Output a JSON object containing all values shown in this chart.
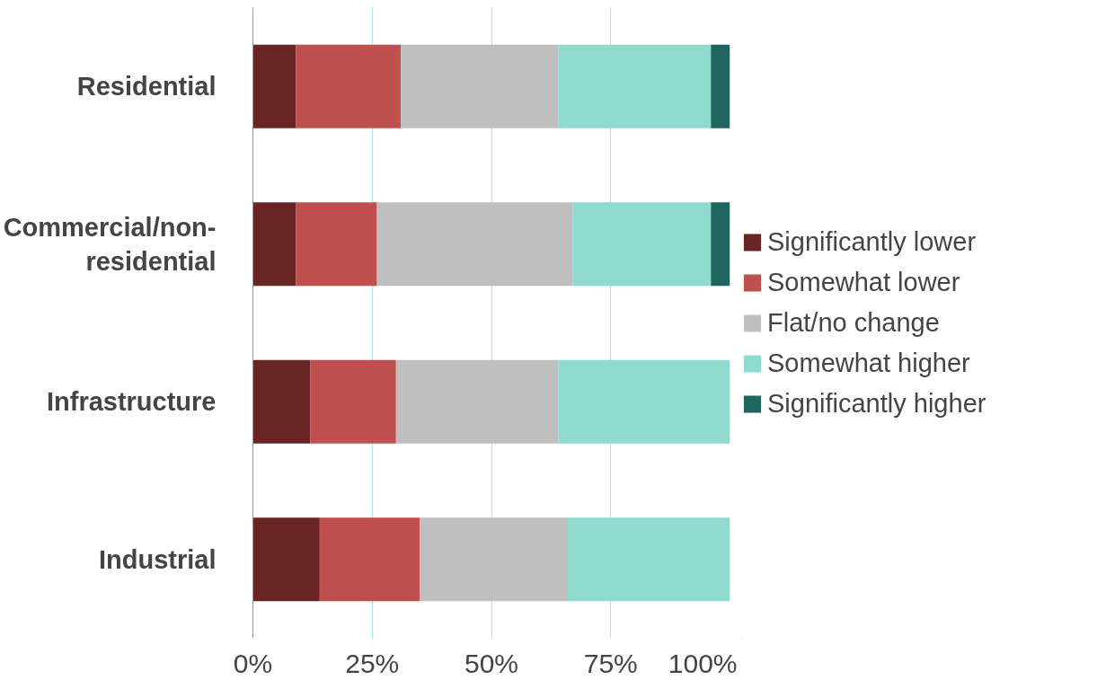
{
  "chart_data": {
    "type": "bar",
    "orientation": "horizontal",
    "stacked": true,
    "categories": [
      "Residential",
      "Commercial/non-residential",
      "Infrastructure",
      "Industrial"
    ],
    "series": [
      {
        "name": "Significantly lower",
        "color": "#692524",
        "values": [
          9,
          9,
          12,
          14
        ]
      },
      {
        "name": "Somewhat lower",
        "color": "#c0504d",
        "values": [
          22,
          17,
          18,
          21
        ]
      },
      {
        "name": "Flat/no change",
        "color": "#bfbfbf",
        "values": [
          33,
          41,
          34,
          31
        ]
      },
      {
        "name": "Somewhat higher",
        "color": "#8fdbd0",
        "values": [
          32,
          29,
          36,
          34
        ]
      },
      {
        "name": "Significantly higher",
        "color": "#1f6560",
        "values": [
          4,
          4,
          0,
          0
        ]
      }
    ],
    "xlim": [
      0,
      100
    ],
    "xticks": [
      {
        "value": 0,
        "label": "0%"
      },
      {
        "value": 25,
        "label": "25%"
      },
      {
        "value": 50,
        "label": "50%"
      },
      {
        "value": 75,
        "label": "75%"
      },
      {
        "value": 100,
        "label": "100%"
      }
    ],
    "grid": "x",
    "legend": "right"
  }
}
